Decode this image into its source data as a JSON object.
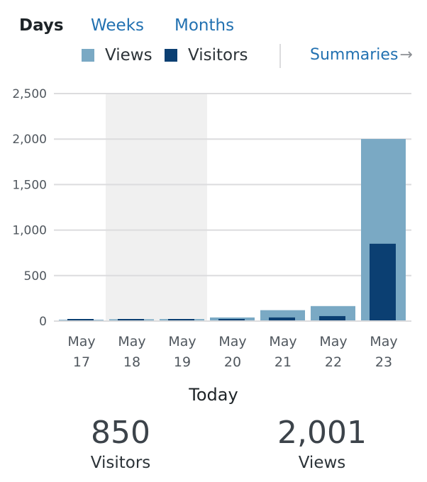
{
  "tabs": {
    "days": "Days",
    "weeks": "Weeks",
    "months": "Months"
  },
  "legend": {
    "views_label": "Views",
    "visitors_label": "Visitors",
    "summaries_label": "Summaries",
    "summaries_arrow": "→"
  },
  "colors": {
    "views": "#7aa9c4",
    "visitors": "#0b3f72",
    "highlight": "#f0f0f0",
    "grid": "#dcdcde",
    "link": "#2271b1"
  },
  "chart_data": {
    "type": "bar",
    "categories": [
      [
        "May",
        "17"
      ],
      [
        "May",
        "18"
      ],
      [
        "May",
        "19"
      ],
      [
        "May",
        "20"
      ],
      [
        "May",
        "21"
      ],
      [
        "May",
        "22"
      ],
      [
        "May",
        "23"
      ]
    ],
    "series": [
      {
        "name": "Views",
        "values": [
          15,
          20,
          22,
          40,
          120,
          165,
          2001
        ]
      },
      {
        "name": "Visitors",
        "values": [
          10,
          10,
          10,
          12,
          40,
          55,
          850
        ]
      }
    ],
    "yticks": [
      0,
      500,
      1000,
      1500,
      2000,
      2500
    ],
    "ytick_labels": [
      "0",
      "500",
      "1,000",
      "1,500",
      "2,000",
      "2,500"
    ],
    "ylim": [
      0,
      2500
    ],
    "highlighted_categories": [
      1,
      2
    ],
    "grid": true,
    "legend_position": "top"
  },
  "summary": {
    "title": "Today",
    "visitors_value": "850",
    "visitors_label": "Visitors",
    "views_value": "2,001",
    "views_label": "Views"
  }
}
